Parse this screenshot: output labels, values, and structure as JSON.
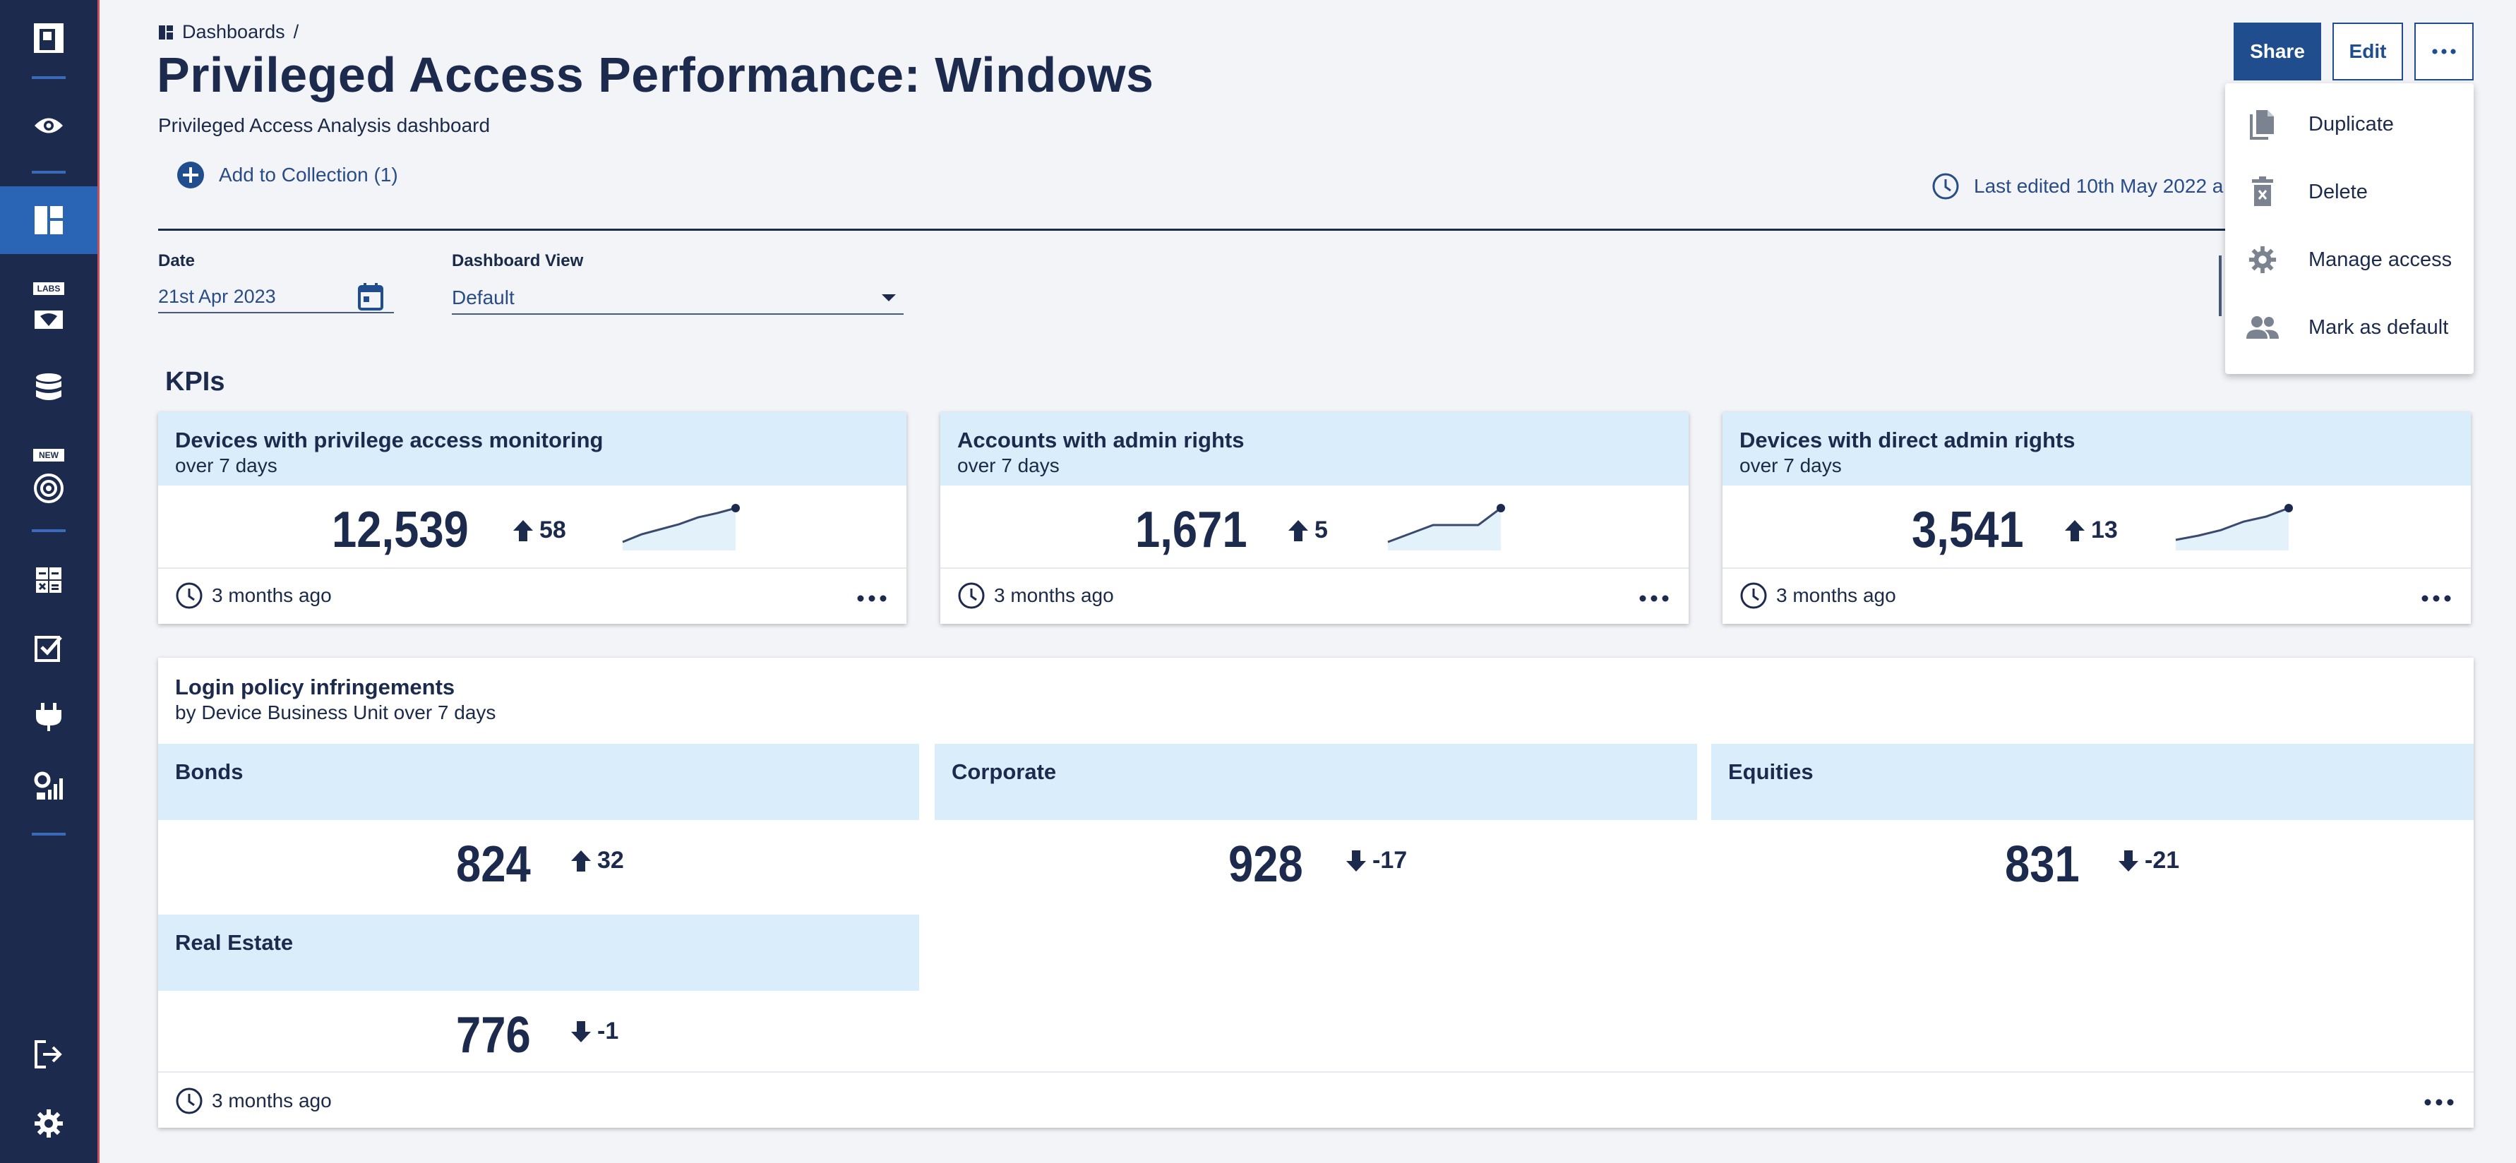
{
  "breadcrumb": {
    "root": "Dashboards",
    "separator": "/"
  },
  "page": {
    "title": "Privileged Access Performance: Windows",
    "subtitle": "Privileged Access Analysis dashboard",
    "add_collection": "Add to Collection (1)",
    "last_edited": "Last edited 10th May 2022 a"
  },
  "toolbar": {
    "share": "Share",
    "edit": "Edit"
  },
  "menu": {
    "items": [
      {
        "label": "Duplicate",
        "icon": "duplicate-icon"
      },
      {
        "label": "Delete",
        "icon": "trash-icon"
      },
      {
        "label": "Manage access",
        "icon": "gear-icon"
      },
      {
        "label": "Mark as default",
        "icon": "people-icon"
      }
    ]
  },
  "filters": {
    "date_label": "Date",
    "date_value": "21st Apr 2023",
    "view_label": "Dashboard View",
    "view_value": "Default"
  },
  "sidebar": {
    "labs_tag": "LABS",
    "new_tag": "NEW",
    "items": [
      "logo",
      "eye-icon",
      "dashboard-icon",
      "labs-icon",
      "database-icon",
      "target-icon",
      "calculator-icon",
      "checklist-icon",
      "plug-icon",
      "settings-chart-icon",
      "logout-icon",
      "gear-icon"
    ]
  },
  "kpis": {
    "section_title": "KPIs",
    "cards": [
      {
        "title": "Devices with privilege access monitoring",
        "period": "over 7 days",
        "value": "12,539",
        "delta": "58",
        "direction": "up",
        "updated": "3 months ago",
        "spark": [
          0.2,
          0.38,
          0.5,
          0.62,
          0.78,
          0.88,
          1.0
        ]
      },
      {
        "title": "Accounts with admin rights",
        "period": "over 7 days",
        "value": "1,671",
        "delta": "5",
        "direction": "up",
        "updated": "3 months ago",
        "spark": [
          0.2,
          0.4,
          0.6,
          0.6,
          0.6,
          1.0
        ]
      },
      {
        "title": "Devices with direct admin rights",
        "period": "over 7 days",
        "value": "3,541",
        "delta": "13",
        "direction": "up",
        "updated": "3 months ago",
        "spark": [
          0.25,
          0.35,
          0.48,
          0.68,
          0.8,
          1.0
        ]
      }
    ]
  },
  "login": {
    "title": "Login policy infringements",
    "subtitle": "by Device Business Unit over 7 days",
    "updated": "3 months ago",
    "units": [
      {
        "name": "Bonds",
        "value": "824",
        "delta": "32",
        "direction": "up"
      },
      {
        "name": "Corporate",
        "value": "928",
        "delta": "-17",
        "direction": "down"
      },
      {
        "name": "Equities",
        "value": "831",
        "delta": "-21",
        "direction": "down"
      },
      {
        "name": "Real Estate",
        "value": "776",
        "delta": "-1",
        "direction": "down"
      }
    ]
  },
  "colors": {
    "sidebar": "#1c2a4e",
    "accent": "#1f4d8e",
    "active": "#2a64b4",
    "tile_header": "#d9eefa"
  }
}
